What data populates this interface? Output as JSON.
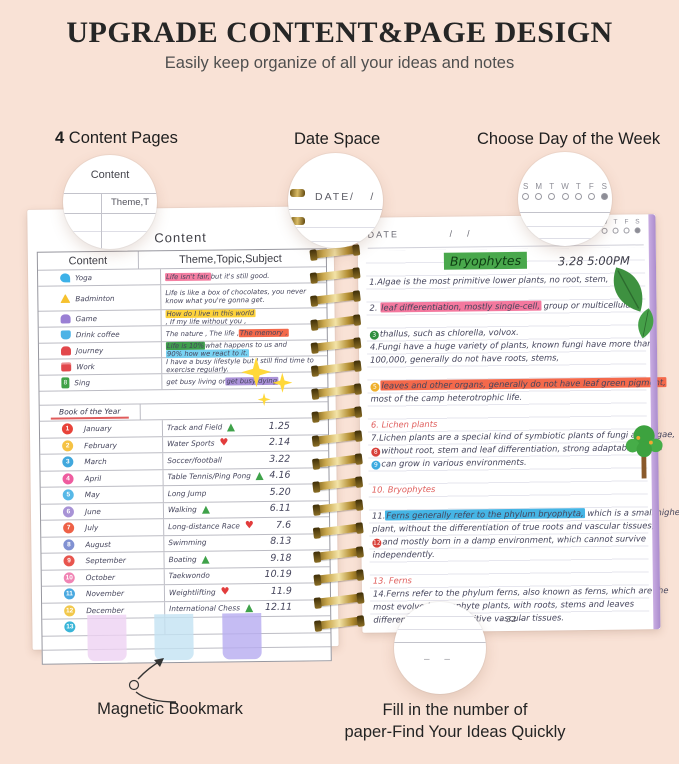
{
  "header": {
    "title": "UPGRADE CONTENT&PAGE DESIGN",
    "subtitle": "Easily keep organize of all your ideas and notes"
  },
  "features": {
    "content_pages_number": "4",
    "content_pages_label": " Content Pages",
    "date_space_label": "Date Space",
    "day_week_label": "Choose Day of the Week"
  },
  "callouts": {
    "content_circle": {
      "title": "Content",
      "cell": "Theme,T"
    },
    "date_circle": {
      "label": "DATE",
      "slashes": "/      /"
    },
    "week_circle": {
      "days": [
        "S",
        "M",
        "T",
        "W",
        "T",
        "F",
        "S"
      ]
    },
    "number_circle": {
      "dashes": "– –"
    }
  },
  "left_page": {
    "heading": "Content",
    "col1_header": "Content",
    "col2_header": "Theme,Topic,Subject",
    "content_rows": [
      {
        "icon": "yoga-icon",
        "shape": "swoosh",
        "color": "#3db1e8",
        "label": "Yoga",
        "s": [
          {
            "t": "Life isn't fair, ",
            "h": "#f57fa2"
          },
          {
            "t": "but it's still good."
          }
        ]
      },
      {
        "icon": "badminton-icon",
        "shape": "triangle",
        "color": "#f6c12e",
        "label": "Badminton",
        "tall": true,
        "s": [
          {
            "t": "Life is like a box of chocolates, you never know what you're gonna get."
          }
        ]
      },
      {
        "icon": "game-icon",
        "shape": "car",
        "color": "#9a7fd4",
        "label": "Game",
        "s": [
          {
            "t": "How do I live in this world ",
            "h": "#fdd23a"
          },
          {
            "t": ", If my life without you ,"
          }
        ]
      },
      {
        "icon": "coffee-icon",
        "shape": "cup",
        "color": "#4db3e6",
        "label": "Drink coffee",
        "s": [
          {
            "t": "The nature , The life , "
          },
          {
            "t": "The memory ,",
            "h": "#f4694b"
          }
        ]
      },
      {
        "icon": "journey-icon",
        "shape": "car",
        "color": "#e2474b",
        "label": "Journey",
        "s": [
          {
            "t": "Life is 10% ",
            "h": "#3f9e4d"
          },
          {
            "t": "what happens to us and "
          },
          {
            "t": "90% how we react to it.",
            "h": "#79d2f2"
          }
        ]
      },
      {
        "icon": "work-icon",
        "shape": "briefcase",
        "color": "#e2474b",
        "label": "Work",
        "s": [
          {
            "t": "I have a busy lifestyle but I still find time to exercise regularly."
          }
        ]
      },
      {
        "icon": "sing-icon",
        "shape": "badge8",
        "color": "#3fa247",
        "label": "Sing",
        "s": [
          {
            "t": "get busy living or "
          },
          {
            "t": "get busy dying",
            "h": "#ab92d8"
          }
        ]
      }
    ],
    "book_title": "Book of the Year",
    "month_rows": [
      {
        "n": "1",
        "c": "#e8433a",
        "m": "January",
        "a": "Track and Field",
        "sym": "tri",
        "d": "1.25"
      },
      {
        "n": "2",
        "c": "#f5c244",
        "m": "February",
        "a": "Water Sports",
        "sym": "heart",
        "d": "2.14"
      },
      {
        "n": "3",
        "c": "#41a8dd",
        "m": "March",
        "a": "Soccer/football",
        "sym": "",
        "d": "3.22"
      },
      {
        "n": "4",
        "c": "#ee5c9f",
        "m": "April",
        "a": "Table Tennis/Ping Pong",
        "sym": "tri",
        "d": "4.16"
      },
      {
        "n": "5",
        "c": "#57b8e7",
        "m": "May",
        "a": "Long Jump",
        "sym": "",
        "d": "5.20"
      },
      {
        "n": "6",
        "c": "#a893d6",
        "m": "June",
        "a": "Walking",
        "sym": "tri",
        "d": "6.11"
      },
      {
        "n": "7",
        "c": "#ee6147",
        "m": "July",
        "a": "Long-distance Race",
        "sym": "heart",
        "d": "7.6"
      },
      {
        "n": "8",
        "c": "#8191d2",
        "m": "August",
        "a": "Swimming",
        "sym": "",
        "d": "8.13"
      },
      {
        "n": "9",
        "c": "#e8554e",
        "m": "September",
        "a": "Boating",
        "sym": "tri",
        "d": "9.18"
      },
      {
        "n": "10",
        "c": "#f084b4",
        "m": "October",
        "a": "Taekwondo",
        "sym": "",
        "d": "10.19"
      },
      {
        "n": "11",
        "c": "#4aa9e0",
        "m": "November",
        "a": "Weightlifting",
        "sym": "heart",
        "d": "11.9"
      },
      {
        "n": "12",
        "c": "#f2c84b",
        "m": "December",
        "a": "International Chess",
        "sym": "tri",
        "d": "12.11"
      },
      {
        "n": "13",
        "c": "#39b5d8",
        "m": "",
        "a": "",
        "sym": "",
        "d": ""
      }
    ]
  },
  "right_page": {
    "date_label": "DATE",
    "slashes": "/      /",
    "days": [
      "S",
      "M",
      "T",
      "W",
      "T",
      "F",
      "S"
    ],
    "title": "Bryophytes",
    "datetime": "3.28 5:00PM",
    "lines": [
      {
        "s": [
          {
            "t": "1.Algae is the most primitive lower plants, no root, stem,"
          }
        ]
      },
      {},
      {
        "s": [
          {
            "t": "2. "
          },
          {
            "t": "leaf differentiation, mostly single-cell,",
            "h": "#f4789e"
          },
          {
            "t": " group or multicellular"
          }
        ]
      },
      {},
      {
        "b": {
          "n": "3",
          "c": "#2e8f3d"
        },
        "s": [
          {
            "t": "thallus, such as chlorella, volvox."
          }
        ]
      },
      {
        "s": [
          {
            "t": "4.Fungi have a huge variety of plants, known fungi have more than"
          }
        ]
      },
      {
        "s": [
          {
            "t": "100,000, generally do not have roots, stems,"
          }
        ]
      },
      {},
      {
        "b": {
          "n": "5",
          "c": "#efb02c"
        },
        "s": [
          {
            "t": "leaves and other organs, generally do not have leaf green pigment,",
            "h": "#f4694b"
          }
        ]
      },
      {
        "s": [
          {
            "t": "most of the camp heterotrophic life."
          }
        ]
      },
      {},
      {
        "s": [
          {
            "t": "6. Lichen plants",
            "r": true
          }
        ]
      },
      {
        "s": [
          {
            "t": "7.Lichen plants are a special kind of symbiotic plants of fungi and algae,"
          }
        ]
      },
      {
        "b": {
          "n": "8",
          "c": "#d8403a"
        },
        "s": [
          {
            "t": "without root, stem and leaf differentiation, strong adaptability, and"
          }
        ]
      },
      {
        "b": {
          "n": "9",
          "c": "#3dabe0"
        },
        "s": [
          {
            "t": "can grow in various environments."
          }
        ]
      },
      {},
      {
        "s": [
          {
            "t": "10. Bryophytes",
            "r": true
          }
        ]
      },
      {},
      {
        "s": [
          {
            "t": "11."
          },
          {
            "t": "Ferns generally refer to the phylum bryophyta,",
            "h": "#45b5e5"
          },
          {
            "t": " which is a small higher"
          }
        ]
      },
      {
        "s": [
          {
            "t": "plant, without the differentiation of true roots and vascular tissues,"
          }
        ]
      },
      {
        "b": {
          "n": "12",
          "c": "#d8403a"
        },
        "s": [
          {
            "t": "and mostly born in a damp environment, which cannot survive"
          }
        ]
      },
      {
        "s": [
          {
            "t": "independently."
          }
        ]
      },
      {},
      {
        "s": [
          {
            "t": "13. Ferns",
            "r": true
          }
        ]
      },
      {
        "s": [
          {
            "t": "14.Ferns refer to the phylum ferns, also known as ferns, which are the"
          }
        ]
      },
      {
        "s": [
          {
            "t": "most evolved sporophyte plants, with roots, stems and leaves"
          }
        ]
      },
      {
        "s": [
          {
            "t": "differentiated, and primitive vascular tissues."
          }
        ]
      }
    ],
    "page_number": "– 32 –"
  },
  "bottom_labels": {
    "magnetic_bookmark": "Magnetic Bookmark",
    "fill_line1": "Fill in the number of",
    "fill_line2": "paper-Find Your Ideas Quickly"
  },
  "bookmarks": {
    "colors": [
      "#edd2f3",
      "#c3e2f3",
      "#b7abf0"
    ]
  },
  "colors": {
    "background": "#f9e2d6",
    "spiral_gold": "#caa84e",
    "cover_purple": "#b091d2",
    "section_red": "#e0605e"
  }
}
